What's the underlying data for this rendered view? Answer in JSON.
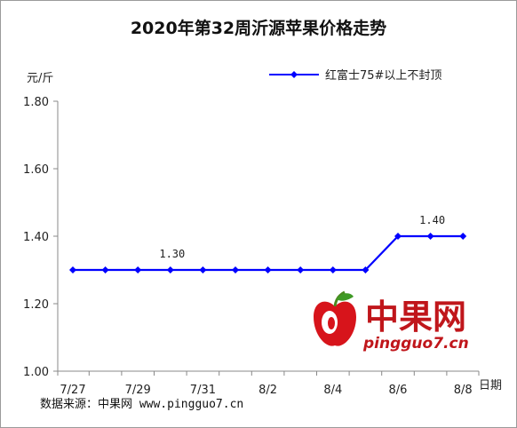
{
  "chart_data": {
    "type": "line",
    "title": "2020年第32周沂源苹果价格走势",
    "ylabel": "元/斤",
    "xlabel": "日期",
    "ylim": [
      1.0,
      1.8
    ],
    "yticks": [
      "1.00",
      "1.20",
      "1.40",
      "1.60",
      "1.80"
    ],
    "categories": [
      "7/27",
      "",
      "7/29",
      "",
      "7/31",
      "",
      "8/2",
      "",
      "8/4",
      "",
      "8/6",
      "",
      "8/8"
    ],
    "series": [
      {
        "name": "红富士75#以上不封顶",
        "color": "#0000ff",
        "values": [
          1.3,
          1.3,
          1.3,
          1.3,
          1.3,
          1.3,
          1.3,
          1.3,
          1.3,
          1.3,
          1.4,
          1.4,
          1.4
        ]
      }
    ],
    "annotations": [
      {
        "index": 3,
        "text": "1.30"
      },
      {
        "index": 11,
        "text": "1.40"
      }
    ],
    "legend_position": "top-right",
    "grid": false
  },
  "source_text": "数据来源：中果网 www.pingguo7.cn",
  "logo": {
    "text": "中果网",
    "url": "pingguo7.cn"
  }
}
